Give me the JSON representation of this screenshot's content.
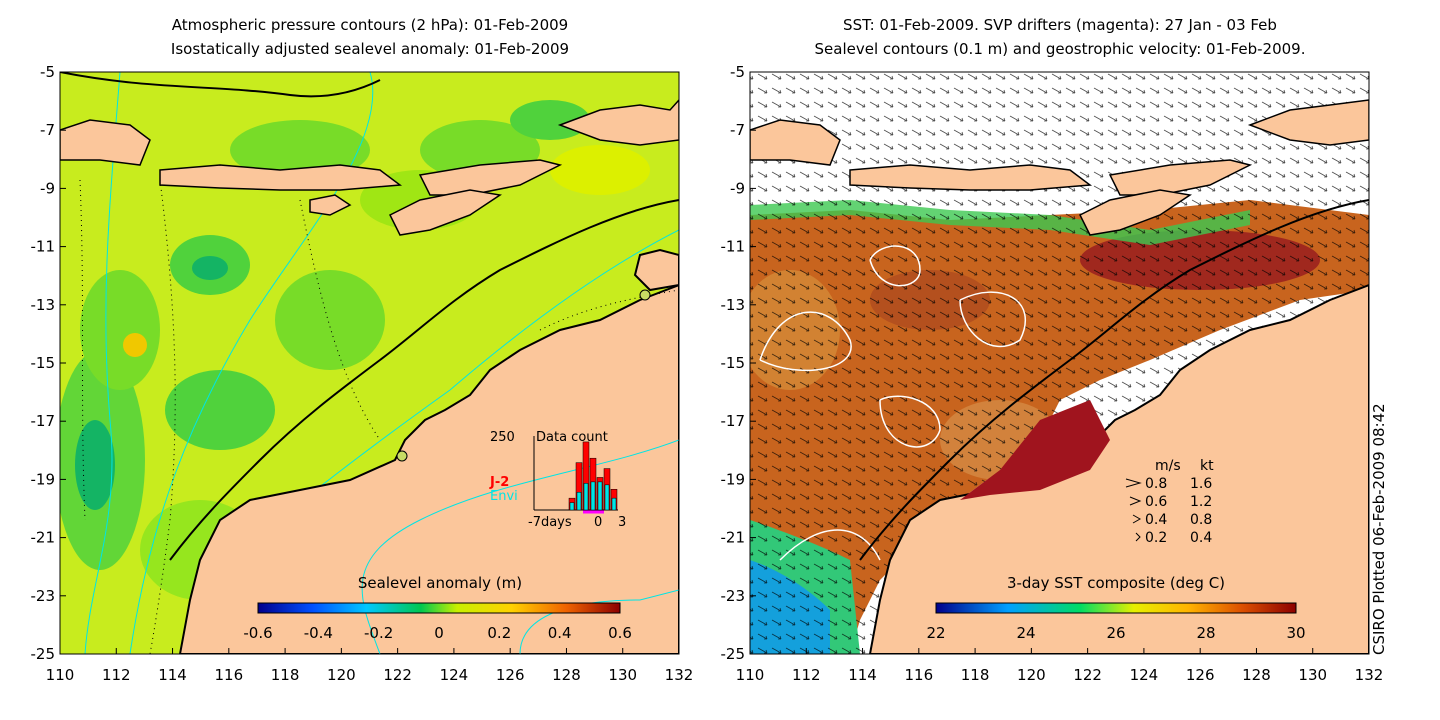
{
  "left_panel": {
    "title_line1": "Atmospheric pressure contours (2 hPa): 01-Feb-2009",
    "title_line2": "Isostatically adjusted sealevel anomaly: 01-Feb-2009",
    "colorbar": {
      "label": "Sealevel anomaly (m)",
      "ticks": [
        "-0.6",
        "-0.4",
        "-0.2",
        "0",
        "0.2",
        "0.4",
        "0.6"
      ]
    },
    "inset": {
      "title": "Data count",
      "ymax_label": "250",
      "x_labels": [
        "-7days",
        "0",
        "3"
      ],
      "legend": [
        {
          "name": "J-2",
          "color": "#ff0000"
        },
        {
          "name": "Envi",
          "color": "#00e5e5"
        }
      ],
      "bars_j2": [
        0,
        0,
        0,
        0,
        0,
        40,
        160,
        230,
        175,
        110,
        140,
        70
      ],
      "bars_envi": [
        0,
        0,
        0,
        0,
        0,
        25,
        60,
        90,
        95,
        95,
        85,
        40
      ]
    }
  },
  "right_panel": {
    "title_line1": "SST: 01-Feb-2009. SVP drifters (magenta): 27 Jan - 03 Feb",
    "title_line2": "Sealevel contours (0.1 m) and geostrophic velocity: 01-Feb-2009.",
    "colorbar": {
      "label": "3-day SST composite (deg C)",
      "ticks": [
        "22",
        "24",
        "26",
        "28",
        "30"
      ]
    },
    "speed_legend": {
      "header_ms": "m/s",
      "header_kt": "kt",
      "rows": [
        {
          "ms": "0.8",
          "kt": "1.6"
        },
        {
          "ms": "0.6",
          "kt": "1.2"
        },
        {
          "ms": "0.4",
          "kt": "0.8"
        },
        {
          "ms": "0.2",
          "kt": "0.4"
        }
      ]
    }
  },
  "axes": {
    "x_ticks": [
      "110",
      "112",
      "114",
      "116",
      "118",
      "120",
      "122",
      "124",
      "126",
      "128",
      "130",
      "132"
    ],
    "y_ticks": [
      "-5",
      "-7",
      "-9",
      "-11",
      "-13",
      "-15",
      "-17",
      "-19",
      "-21",
      "-23",
      "-25"
    ]
  },
  "credit": "CSIRO Plotted 06-Feb-2009 08:42",
  "colors": {
    "land": "#fbc69b",
    "sla_base": "#c8ec1e",
    "sst_base": "#c8641e",
    "contour_cyan": "#00e5e5"
  }
}
